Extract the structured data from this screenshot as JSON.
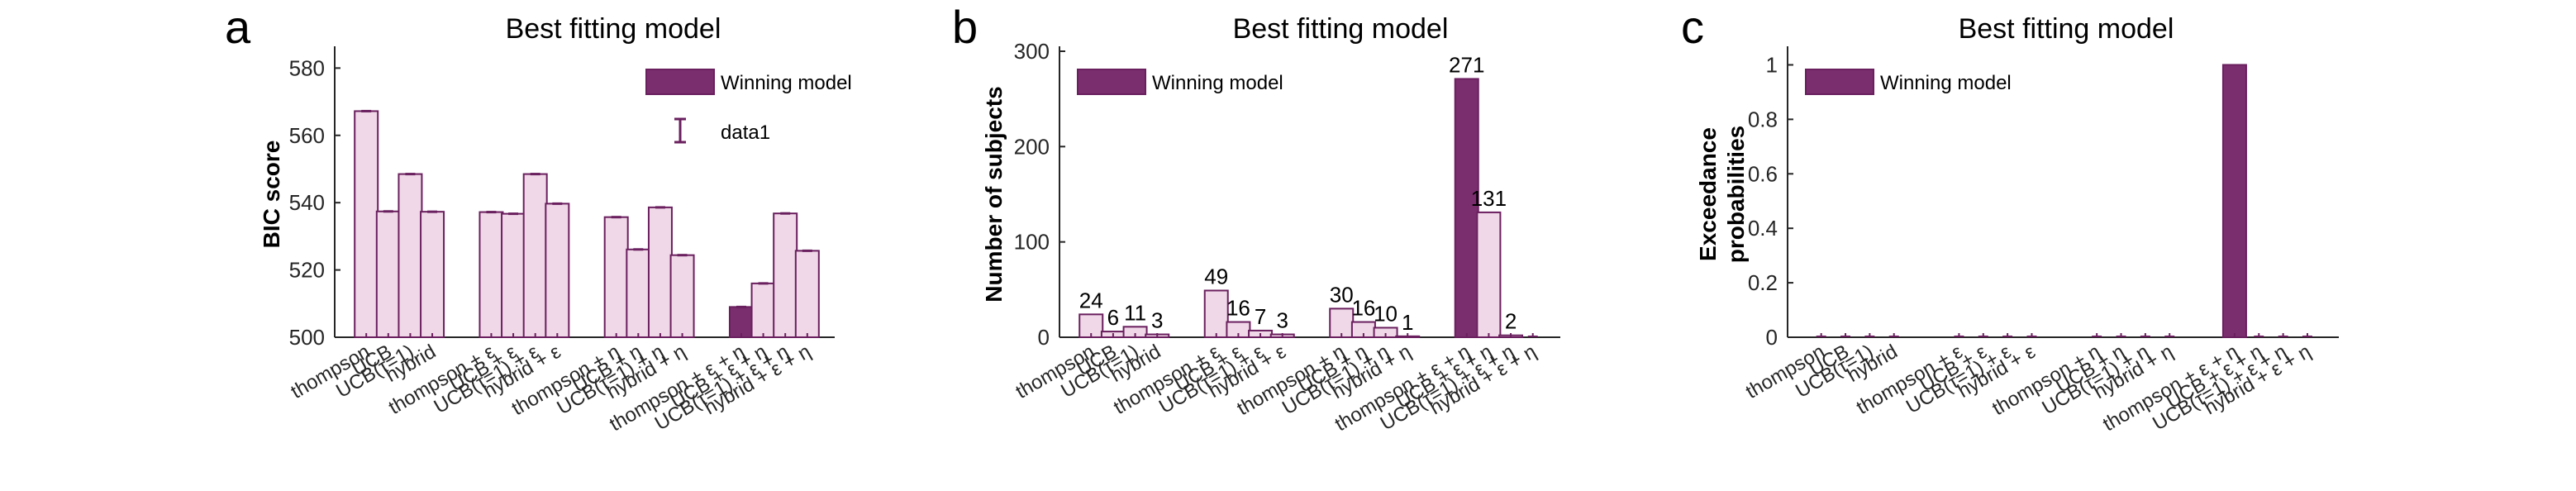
{
  "colors": {
    "normal_fill": "#f0d8e8",
    "winning_fill": "#7b2e6e",
    "edge": "#6a1f5e",
    "axis": "#262626"
  },
  "chart_data": [
    {
      "panel_letter": "a",
      "type": "bar",
      "title": "Best fitting model",
      "xlabel": "",
      "ylabel": "BIC score",
      "ylim": [
        500,
        585
      ],
      "yticks": [
        500,
        520,
        540,
        560,
        580
      ],
      "categories": [
        "thompson",
        "UCB",
        "UCB(τ=1)",
        "hybrid",
        "thompson + ε",
        "UCB + ε",
        "UCB(τ=1) + ε",
        "hybrid + ε",
        "thompson + η",
        "UCB + η",
        "UCB(τ=1) + η",
        "hybrid + η",
        "thompson + ε + η",
        "UCB + ε + η",
        "UCB(τ=1) + ε + η",
        "hybrid + ε + η"
      ],
      "values": [
        567.2,
        537.4,
        548.5,
        537.3,
        537.2,
        536.7,
        548.5,
        539.7,
        535.7,
        526.1,
        538.6,
        524.4,
        509.0,
        516.0,
        536.8,
        525.7
      ],
      "error_bars": true,
      "winning_index": 12,
      "legend": {
        "position": "top-right",
        "entries": [
          "Winning model",
          "data1"
        ]
      }
    },
    {
      "panel_letter": "b",
      "type": "bar",
      "title": "Best fitting model",
      "xlabel": "",
      "ylabel": "Number of subjects",
      "ylim": [
        0,
        300
      ],
      "yticks": [
        0,
        100,
        200,
        300
      ],
      "categories": [
        "thompson",
        "UCB",
        "UCB(τ=1)",
        "hybrid",
        "thompson + ε",
        "UCB + ε",
        "UCB(τ=1) + ε",
        "hybrid + ε",
        "thompson + η",
        "UCB + η",
        "UCB(τ=1) + η",
        "hybrid + η",
        "thompson + ε + η",
        "UCB + ε + η",
        "UCB(τ=1) + ε + η",
        "hybrid + ε + η"
      ],
      "values": [
        24,
        6,
        11,
        3,
        49,
        16,
        7,
        3,
        30,
        16,
        10,
        1,
        271,
        131,
        2,
        0
      ],
      "data_labels": [
        "24",
        "6",
        "11",
        "3",
        "49",
        "16",
        "7",
        "3",
        "30",
        "16",
        "10",
        "1",
        "271",
        "131",
        "2",
        ""
      ],
      "error_bars": false,
      "winning_index": 12,
      "legend": {
        "position": "top-left",
        "entries": [
          "Winning model"
        ]
      }
    },
    {
      "panel_letter": "c",
      "type": "bar",
      "title": "Best fitting model",
      "xlabel": "",
      "ylabel": "Exceedance probabilities",
      "ylim": [
        0,
        1.05
      ],
      "yticks": [
        0,
        0.2,
        0.4,
        0.6,
        0.8,
        1
      ],
      "ytick_labels": [
        "0",
        "0.2",
        "0.4",
        "0.6",
        "0.8",
        "1"
      ],
      "categories": [
        "thompson",
        "UCB",
        "UCB(τ=1)",
        "hybrid",
        "thompson + ε",
        "UCB + ε",
        "UCB(τ=1) + ε",
        "hybrid + ε",
        "thompson + η",
        "UCB + η",
        "UCB(τ=1) + η",
        "hybrid + η",
        "thompson + ε + η",
        "UCB + ε + η",
        "UCB(τ=1) + ε + η",
        "hybrid + ε + η"
      ],
      "values": [
        0,
        0,
        0,
        0,
        0,
        0,
        0,
        0,
        0,
        0,
        0,
        0,
        1,
        0,
        0,
        0
      ],
      "error_bars": false,
      "winning_index": 12,
      "legend": {
        "position": "top-left",
        "entries": [
          "Winning model"
        ]
      }
    }
  ]
}
